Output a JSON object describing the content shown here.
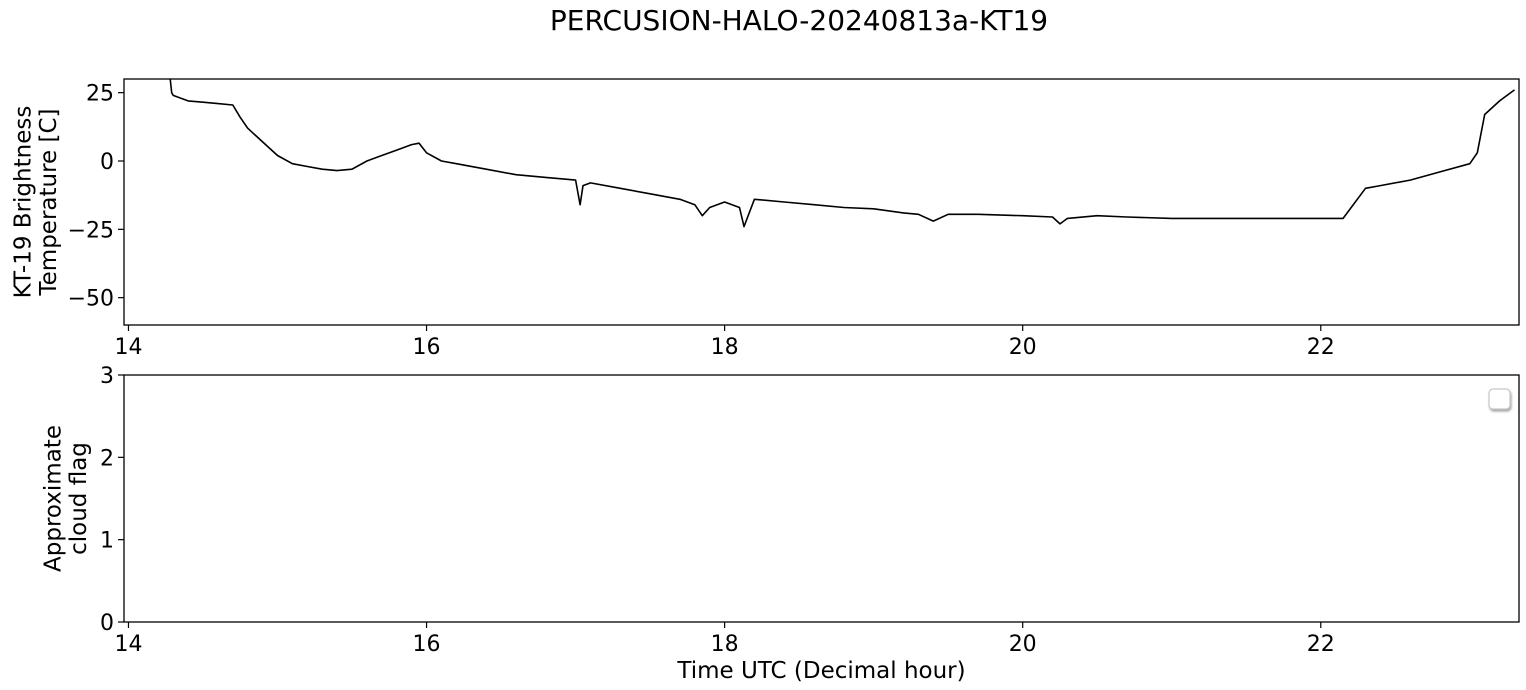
{
  "figure": {
    "title": "PERCUSION-HALO-20240813a-KT19"
  },
  "chart_data": [
    {
      "type": "line",
      "name": "KT-19 brightness temperature",
      "ylabel_line1": "KT-19 Brightness",
      "ylabel_line2": "Temperature [C]",
      "xlabel": "",
      "xlim": [
        13.97,
        23.33
      ],
      "ylim": [
        -60,
        30
      ],
      "xticks": [
        14,
        16,
        18,
        20,
        22
      ],
      "xtick_labels": [
        "14",
        "16",
        "18",
        "20",
        "22"
      ],
      "yticks": [
        25,
        0,
        -25,
        -50
      ],
      "ytick_labels": [
        "25",
        "0",
        "−25",
        "−50"
      ],
      "grid": false,
      "line_color": "#000000",
      "x": [
        14.28,
        14.29,
        14.3,
        14.35,
        14.4,
        14.5,
        14.6,
        14.7,
        14.75,
        14.8,
        14.9,
        15.0,
        15.1,
        15.2,
        15.3,
        15.4,
        15.5,
        15.6,
        15.7,
        15.8,
        15.9,
        15.95,
        16.0,
        16.1,
        16.2,
        16.4,
        16.6,
        16.8,
        17.0,
        17.03,
        17.05,
        17.1,
        17.3,
        17.5,
        17.7,
        17.8,
        17.85,
        17.9,
        18.0,
        18.1,
        18.13,
        18.2,
        18.4,
        18.6,
        18.8,
        19.0,
        19.2,
        19.3,
        19.4,
        19.5,
        19.7,
        20.0,
        20.2,
        20.25,
        20.3,
        20.5,
        20.7,
        21.0,
        21.5,
        22.0,
        22.15,
        22.3,
        22.4,
        22.6,
        22.8,
        23.0,
        23.05,
        23.1,
        23.2,
        23.3
      ],
      "y": [
        30,
        25,
        24,
        23,
        22,
        21.5,
        21,
        20.5,
        16,
        12,
        7,
        2,
        -1,
        -2,
        -3,
        -3.5,
        -3,
        0,
        2,
        4,
        6,
        6.5,
        3,
        0,
        -1,
        -3,
        -5,
        -6,
        -7,
        -16,
        -9,
        -8,
        -10,
        -12,
        -14,
        -16,
        -20,
        -17,
        -15,
        -17,
        -24,
        -14,
        -15,
        -16,
        -17,
        -17.5,
        -19,
        -19.5,
        -22,
        -19.5,
        -19.5,
        -20,
        -20.5,
        -23,
        -21,
        -20,
        -20.5,
        -21,
        -21,
        -21,
        -21,
        -10,
        -9,
        -7,
        -4,
        -1,
        3,
        17,
        22,
        26
      ]
    },
    {
      "type": "line",
      "name": "Approximate cloud flag",
      "ylabel_line1": "Approximate",
      "ylabel_line2": "cloud flag",
      "xlabel": "Time UTC (Decimal hour)",
      "xlim": [
        13.97,
        23.33
      ],
      "ylim": [
        0,
        3
      ],
      "xticks": [
        14,
        16,
        18,
        20,
        22
      ],
      "xtick_labels": [
        "14",
        "16",
        "18",
        "20",
        "22"
      ],
      "yticks": [
        0,
        1,
        2,
        3
      ],
      "ytick_labels": [
        "0",
        "1",
        "2",
        "3"
      ],
      "grid": false,
      "legend": "top-right (empty)",
      "x": [],
      "y": []
    }
  ]
}
